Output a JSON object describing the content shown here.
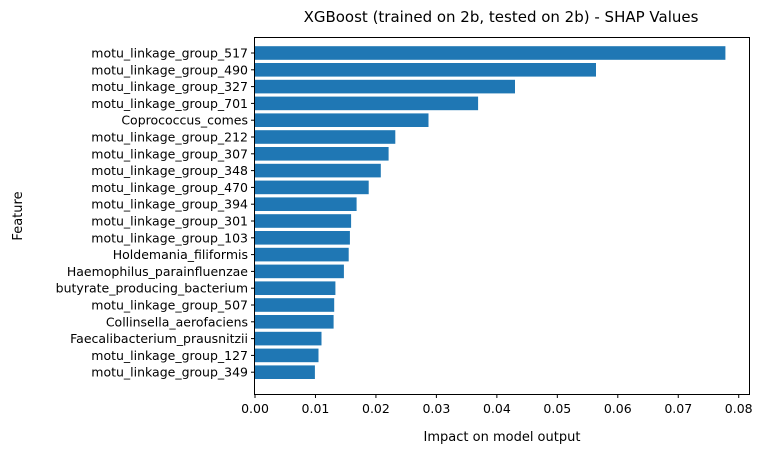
{
  "chart_data": {
    "type": "bar",
    "orientation": "horizontal",
    "title": "XGBoost (trained on 2b, tested on 2b) -  SHAP Values",
    "xlabel": "Impact on model output",
    "ylabel": "Feature",
    "xlim": [
      0,
      0.0817
    ],
    "xticks": [
      "0.00",
      "0.01",
      "0.02",
      "0.03",
      "0.04",
      "0.05",
      "0.06",
      "0.07",
      "0.08"
    ],
    "grid": false,
    "bar_color": "#1f77b4",
    "categories": [
      "motu_linkage_group_517",
      "motu_linkage_group_490",
      "motu_linkage_group_327",
      "motu_linkage_group_701",
      "Coprococcus_comes",
      "motu_linkage_group_212",
      "motu_linkage_group_307",
      "motu_linkage_group_348",
      "motu_linkage_group_470",
      "motu_linkage_group_394",
      "motu_linkage_group_301",
      "motu_linkage_group_103",
      "Holdemania_filiformis",
      "Haemophilus_parainfluenzae",
      "butyrate_producing_bacterium",
      "motu_linkage_group_507",
      "Collinsella_aerofaciens",
      "Faecalibacterium_prausnitzii",
      "motu_linkage_group_127",
      "motu_linkage_group_349"
    ],
    "values": [
      0.0778,
      0.0564,
      0.043,
      0.0369,
      0.0287,
      0.0232,
      0.0221,
      0.0208,
      0.0188,
      0.0168,
      0.0159,
      0.0157,
      0.0155,
      0.0147,
      0.0133,
      0.0131,
      0.013,
      0.011,
      0.0105,
      0.0099
    ]
  }
}
